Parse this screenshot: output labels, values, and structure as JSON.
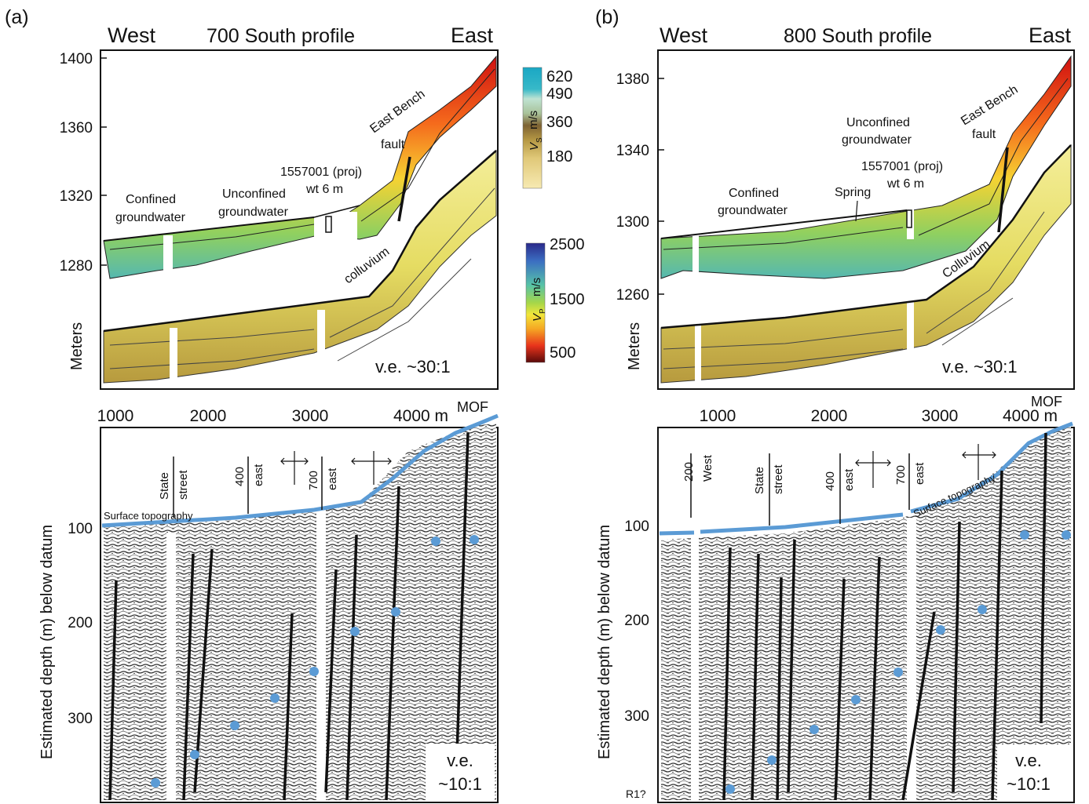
{
  "panels": [
    {
      "letter": "(a)",
      "west": "West",
      "east": "East",
      "title": "700 South profile",
      "vert_exag": "v.e. ~30:1",
      "upper_ticks": [
        "1400",
        "1360",
        "1320",
        "1280"
      ],
      "upper_ylabel": "Meters",
      "labels": {
        "confined": [
          "Confined",
          "groundwater"
        ],
        "unconfined": [
          "Unconfined",
          "groundwater"
        ],
        "well": [
          "1557001 (proj)",
          "wt 6 m"
        ],
        "fault": [
          "East Bench",
          "fault"
        ],
        "colluvium": "colluvium"
      },
      "x_ticks": [
        "1000",
        "2000",
        "3000",
        "4000 m"
      ],
      "mof": "MOF",
      "streets": [
        {
          "name": "State",
          "type": "street"
        },
        {
          "name": "400",
          "type": "east"
        },
        {
          "name": "700",
          "type": "east"
        }
      ],
      "surface_label": "Surface topography",
      "lower_ticks": [
        "100",
        "200",
        "300"
      ],
      "lower_ylabel": "Estimated depth (m) below datum",
      "lower_ve": [
        "v.e.",
        "~10:1"
      ]
    },
    {
      "letter": "(b)",
      "west": "West",
      "east": "East",
      "title": "800 South profile",
      "vert_exag": "v.e. ~30:1",
      "upper_ticks": [
        "1380",
        "1340",
        "1300",
        "1260"
      ],
      "upper_ylabel": "Meters",
      "labels": {
        "confined": [
          "Confined",
          "groundwater"
        ],
        "unconfined": [
          "Unconfined",
          "groundwater"
        ],
        "spring": "Spring",
        "well": [
          "1557001 (proj)",
          "wt 6 m"
        ],
        "fault": [
          "East Bench",
          "fault"
        ],
        "colluvium": "Colluvium"
      },
      "x_ticks": [
        "1000",
        "2000",
        "3000",
        "4000 m"
      ],
      "mof": "MOF",
      "streets": [
        {
          "name": "200",
          "type": "West"
        },
        {
          "name": "State",
          "type": "street"
        },
        {
          "name": "400",
          "type": "east"
        },
        {
          "name": "700",
          "type": "east"
        }
      ],
      "surface_label": "Surface topography",
      "lower_ticks": [
        "100",
        "200",
        "300"
      ],
      "lower_ylabel": "Estimated depth (m) below datum",
      "lower_ve": [
        "v.e.",
        "~10:1"
      ],
      "reflector": "R1?"
    }
  ],
  "vs_scale": {
    "ticks": [
      "620",
      "490",
      "360",
      "180"
    ],
    "unit": "m/s",
    "symbol": "V",
    "sub": "S"
  },
  "vp_scale": {
    "ticks": [
      "2500",
      "1500",
      "500"
    ],
    "unit": "m/s",
    "symbol": "V",
    "sub": "P"
  },
  "colors": {
    "surface": "#5b9bd5",
    "marker": "#5b9bd5",
    "fault_line": "#111111"
  }
}
